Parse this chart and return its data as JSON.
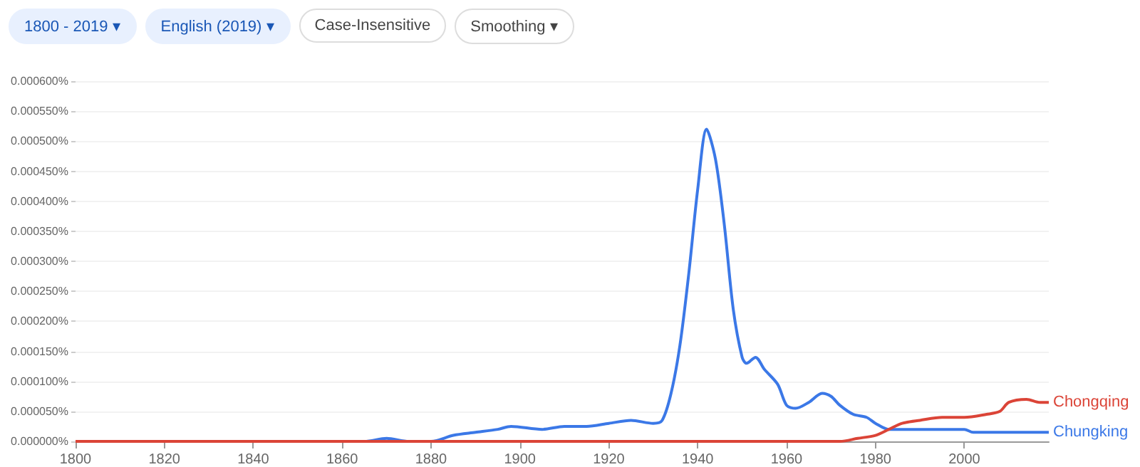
{
  "chart_data": {
    "type": "line",
    "annotations": [
      "1800 - 2019 ▾",
      "English (2019) ▾",
      "Case-Insensitive",
      "Smoothing ▾"
    ],
    "xlim": [
      1800,
      2019
    ],
    "xticks": [
      1800,
      1820,
      1840,
      1860,
      1880,
      1900,
      1920,
      1940,
      1960,
      1980,
      2000
    ],
    "ylim": [
      0,
      0.0006
    ],
    "yticks": [
      {
        "value": 0,
        "label": "0.000000%"
      },
      {
        "value": 5e-05,
        "label": "0.000050%"
      },
      {
        "value": 0.0001,
        "label": "0.000100%"
      },
      {
        "value": 0.00015,
        "label": "0.000150%"
      },
      {
        "value": 0.0002,
        "label": "0.000200%"
      },
      {
        "value": 0.00025,
        "label": "0.000250%"
      },
      {
        "value": 0.0003,
        "label": "0.000300%"
      },
      {
        "value": 0.00035,
        "label": "0.000350%"
      },
      {
        "value": 0.0004,
        "label": "0.000400%"
      },
      {
        "value": 0.00045,
        "label": "0.000450%"
      },
      {
        "value": 0.0005,
        "label": "0.000500%"
      },
      {
        "value": 0.00055,
        "label": "0.000550%"
      },
      {
        "value": 0.0006,
        "label": "0.000600%"
      }
    ],
    "grid": "y",
    "legend": false,
    "marker": "none",
    "line_style": "solid",
    "series": [
      {
        "name": "Chungking",
        "color": "#3b78e7",
        "x": [
          1800,
          1865,
          1870,
          1875,
          1880,
          1885,
          1890,
          1895,
          1898,
          1905,
          1910,
          1915,
          1920,
          1925,
          1930,
          1932,
          1934,
          1936,
          1938,
          1940,
          1942,
          1944,
          1946,
          1948,
          1950,
          1951,
          1953,
          1955,
          1958,
          1960,
          1962,
          1965,
          1968,
          1970,
          1972,
          1975,
          1978,
          1980,
          1983,
          1990,
          1995,
          2000,
          2002,
          2010,
          2019
        ],
        "values": [
          0,
          0,
          5e-06,
          0,
          0,
          1e-05,
          1.5e-05,
          2e-05,
          2.5e-05,
          2e-05,
          2.5e-05,
          2.5e-05,
          3e-05,
          3.5e-05,
          3e-05,
          3.5e-05,
          8e-05,
          0.00016,
          0.00028,
          0.00042,
          0.00052,
          0.00047,
          0.00036,
          0.00022,
          0.00014,
          0.00013,
          0.00014,
          0.00012,
          9.5e-05,
          6e-05,
          5.5e-05,
          6.5e-05,
          8e-05,
          7.5e-05,
          6e-05,
          4.5e-05,
          4e-05,
          3e-05,
          2e-05,
          2e-05,
          2e-05,
          2e-05,
          1.5e-05,
          1.5e-05,
          1.5e-05
        ]
      },
      {
        "name": "Chongqing",
        "color": "#db4437",
        "x": [
          1800,
          1972,
          1976,
          1980,
          1983,
          1986,
          1990,
          1995,
          2000,
          2005,
          2008,
          2010,
          2014,
          2017,
          2019
        ],
        "values": [
          0,
          0,
          5e-06,
          1e-05,
          2e-05,
          3e-05,
          3.5e-05,
          4e-05,
          4e-05,
          4.5e-05,
          5e-05,
          6.5e-05,
          7e-05,
          6.5e-05,
          6.5e-05
        ]
      }
    ]
  }
}
